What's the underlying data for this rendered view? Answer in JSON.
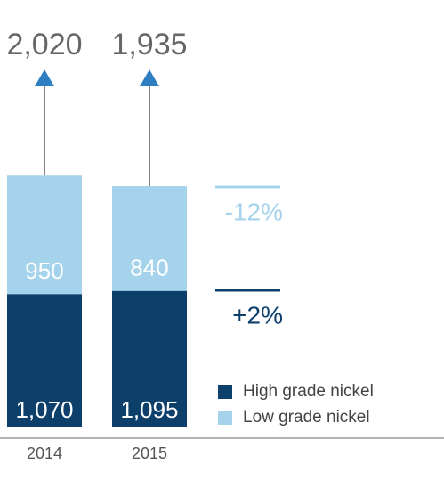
{
  "chart_data": {
    "type": "stacked-bar",
    "categories": [
      "2014",
      "2015"
    ],
    "series": [
      {
        "name": "High grade nickel",
        "color": "#0d3f6b",
        "values": [
          1070,
          1095
        ],
        "value_labels": [
          "1,070",
          "1,095"
        ]
      },
      {
        "name": "Low grade nickel",
        "color": "#a6d3ec",
        "values": [
          950,
          840
        ],
        "value_labels": [
          "950",
          "840"
        ]
      }
    ],
    "totals": [
      2020,
      1935
    ],
    "total_labels": [
      "2,020",
      "1,935"
    ],
    "annotations": [
      "-12%",
      "+2%"
    ]
  }
}
